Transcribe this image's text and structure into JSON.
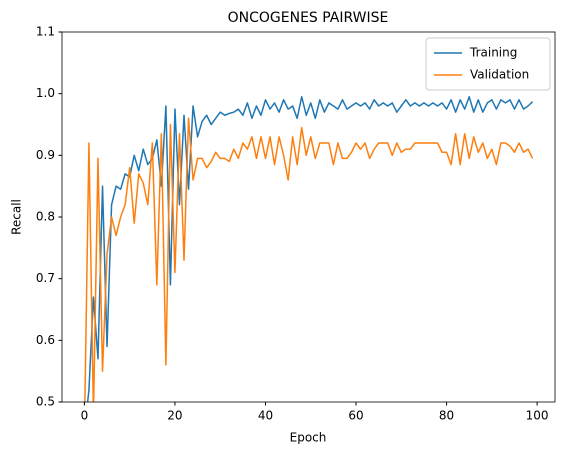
{
  "chart_data": {
    "type": "line",
    "title": "ONCOGENES PAIRWISE",
    "x_label": "Epoch",
    "y_label": "Recall",
    "x": [
      0,
      1,
      2,
      3,
      4,
      5,
      6,
      7,
      8,
      9,
      10,
      11,
      12,
      13,
      14,
      15,
      16,
      17,
      18,
      19,
      20,
      21,
      22,
      23,
      24,
      25,
      26,
      27,
      28,
      29,
      30,
      31,
      32,
      33,
      34,
      35,
      36,
      37,
      38,
      39,
      40,
      41,
      42,
      43,
      44,
      45,
      46,
      47,
      48,
      49,
      50,
      51,
      52,
      53,
      54,
      55,
      56,
      57,
      58,
      59,
      60,
      61,
      62,
      63,
      64,
      65,
      66,
      67,
      68,
      69,
      70,
      71,
      72,
      73,
      74,
      75,
      76,
      77,
      78,
      79,
      80,
      81,
      82,
      83,
      84,
      85,
      86,
      87,
      88,
      89,
      90,
      91,
      92,
      93,
      94,
      95,
      96,
      97,
      98,
      99
    ],
    "series": [
      {
        "name": "Training",
        "color": "#1f77b4",
        "values": [
          0.45,
          0.52,
          0.67,
          0.57,
          0.85,
          0.59,
          0.82,
          0.85,
          0.845,
          0.87,
          0.865,
          0.9,
          0.875,
          0.91,
          0.885,
          0.895,
          0.925,
          0.85,
          0.98,
          0.69,
          0.975,
          0.82,
          0.965,
          0.845,
          0.98,
          0.93,
          0.955,
          0.965,
          0.95,
          0.96,
          0.97,
          0.965,
          0.968,
          0.97,
          0.975,
          0.965,
          0.985,
          0.96,
          0.98,
          0.965,
          0.99,
          0.975,
          0.985,
          0.97,
          0.99,
          0.975,
          0.98,
          0.96,
          0.995,
          0.965,
          0.985,
          0.96,
          0.99,
          0.97,
          0.985,
          0.98,
          0.975,
          0.99,
          0.975,
          0.98,
          0.985,
          0.98,
          0.985,
          0.975,
          0.99,
          0.98,
          0.985,
          0.98,
          0.985,
          0.97,
          0.98,
          0.99,
          0.98,
          0.985,
          0.98,
          0.985,
          0.98,
          0.985,
          0.98,
          0.985,
          0.975,
          0.99,
          0.97,
          0.99,
          0.975,
          0.995,
          0.97,
          0.99,
          0.97,
          0.985,
          0.99,
          0.975,
          0.99,
          0.985,
          0.99,
          0.975,
          0.99,
          0.975,
          0.98,
          0.987
        ]
      },
      {
        "name": "Validation",
        "color": "#ff7f0e",
        "values": [
          0.45,
          0.92,
          0.48,
          0.895,
          0.55,
          0.74,
          0.8,
          0.77,
          0.8,
          0.82,
          0.88,
          0.79,
          0.87,
          0.855,
          0.82,
          0.92,
          0.69,
          0.935,
          0.56,
          0.95,
          0.71,
          0.935,
          0.73,
          0.96,
          0.86,
          0.895,
          0.895,
          0.88,
          0.89,
          0.905,
          0.895,
          0.895,
          0.89,
          0.91,
          0.895,
          0.92,
          0.91,
          0.93,
          0.895,
          0.93,
          0.895,
          0.93,
          0.885,
          0.93,
          0.9,
          0.86,
          0.93,
          0.885,
          0.945,
          0.9,
          0.93,
          0.895,
          0.92,
          0.92,
          0.92,
          0.885,
          0.92,
          0.895,
          0.895,
          0.905,
          0.92,
          0.91,
          0.92,
          0.895,
          0.91,
          0.92,
          0.92,
          0.92,
          0.9,
          0.92,
          0.905,
          0.91,
          0.91,
          0.92,
          0.92,
          0.92,
          0.92,
          0.92,
          0.92,
          0.905,
          0.905,
          0.885,
          0.935,
          0.885,
          0.935,
          0.895,
          0.93,
          0.905,
          0.92,
          0.895,
          0.91,
          0.885,
          0.92,
          0.92,
          0.915,
          0.905,
          0.92,
          0.905,
          0.91,
          0.895
        ]
      }
    ],
    "xlim": [
      -4.95,
      103.95
    ],
    "xticks": [
      0,
      20,
      40,
      60,
      80,
      100
    ],
    "ylim": [
      0.5,
      1.1
    ],
    "yticks": [
      0.5,
      0.6,
      0.7,
      0.8,
      0.9,
      {
        "value": 1,
        "label": "1.0"
      },
      1.1
    ],
    "grid": false,
    "legend": "upper right"
  }
}
